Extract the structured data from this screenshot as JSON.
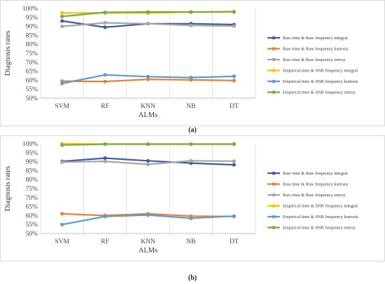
{
  "chart_data": [
    {
      "type": "line",
      "caption": "(a)",
      "xlabel": "ALMs",
      "ylabel": "Diagnosis rates",
      "ylim": [
        50,
        100
      ],
      "y_ticks": [
        "50%",
        "55%",
        "60%",
        "65%",
        "70%",
        "75%",
        "80%",
        "85%",
        "90%",
        "95%",
        "100%"
      ],
      "categories": [
        "SVM",
        "RF",
        "KNN",
        "NB",
        "DT"
      ],
      "grid": "vertical",
      "legend_position": "right",
      "series": [
        {
          "name": "Raw time & Raw frequency integral",
          "color": "#3a5fa5",
          "values": [
            93,
            89.5,
            91.5,
            91.5,
            91
          ]
        },
        {
          "name": "Raw time & Raw frequency kurtosis",
          "color": "#ed7d31",
          "values": [
            59.5,
            59.3,
            60.5,
            60.2,
            59.8
          ]
        },
        {
          "name": "Raw time & Raw frequency entroy",
          "color": "#a5a5a5",
          "values": [
            90,
            92,
            91.5,
            90.5,
            90.2
          ]
        },
        {
          "name": "Empirical time & SNR frequency integral",
          "color": "#ffc000",
          "values": [
            97.5,
            97.5,
            97.5,
            98,
            98
          ]
        },
        {
          "name": "Empirical time & SNR frequency kurtosis",
          "color": "#5b9bd5",
          "values": [
            58.2,
            63,
            62,
            61.5,
            62.2
          ]
        },
        {
          "name": "Empirical time & SNR frequency entroy",
          "color": "#70ad47",
          "values": [
            95.5,
            97.8,
            98,
            98,
            98.2
          ]
        }
      ]
    },
    {
      "type": "line",
      "caption": "(b)",
      "xlabel": "ALMs",
      "ylabel": "Diagnosis rates",
      "ylim": [
        50,
        100
      ],
      "y_ticks": [
        "50%",
        "55%",
        "60%",
        "65%",
        "70%",
        "75%",
        "80%",
        "85%",
        "90%",
        "95%",
        "100%"
      ],
      "categories": [
        "SVM",
        "RF",
        "KNN",
        "NB",
        "DT"
      ],
      "grid": "vertical",
      "legend_position": "right",
      "series": [
        {
          "name": "Raw time & Raw frequency integral",
          "color": "#3a5fa5",
          "values": [
            90.2,
            92,
            90.5,
            89.2,
            88.3
          ]
        },
        {
          "name": "Raw time & Raw frequency kurtosis",
          "color": "#ed7d31",
          "values": [
            61,
            60,
            61,
            59.7,
            59.5
          ]
        },
        {
          "name": "Raw time & Raw frequency entroy",
          "color": "#a5a5a5",
          "values": [
            89.8,
            90.2,
            88.5,
            90.5,
            90.3
          ]
        },
        {
          "name": "Empirical time & SNR frequency integral",
          "color": "#ffc000",
          "values": [
            100,
            99.8,
            99.8,
            99.8,
            99.8
          ]
        },
        {
          "name": "Empirical time & SNR frequency kurtosis",
          "color": "#5b9bd5",
          "values": [
            55,
            59.5,
            60.3,
            58.5,
            59.7
          ]
        },
        {
          "name": "Empirical time & SNR frequency entroy",
          "color": "#70ad47",
          "values": [
            99.3,
            99.8,
            99.8,
            99.8,
            99.8
          ]
        }
      ]
    }
  ]
}
